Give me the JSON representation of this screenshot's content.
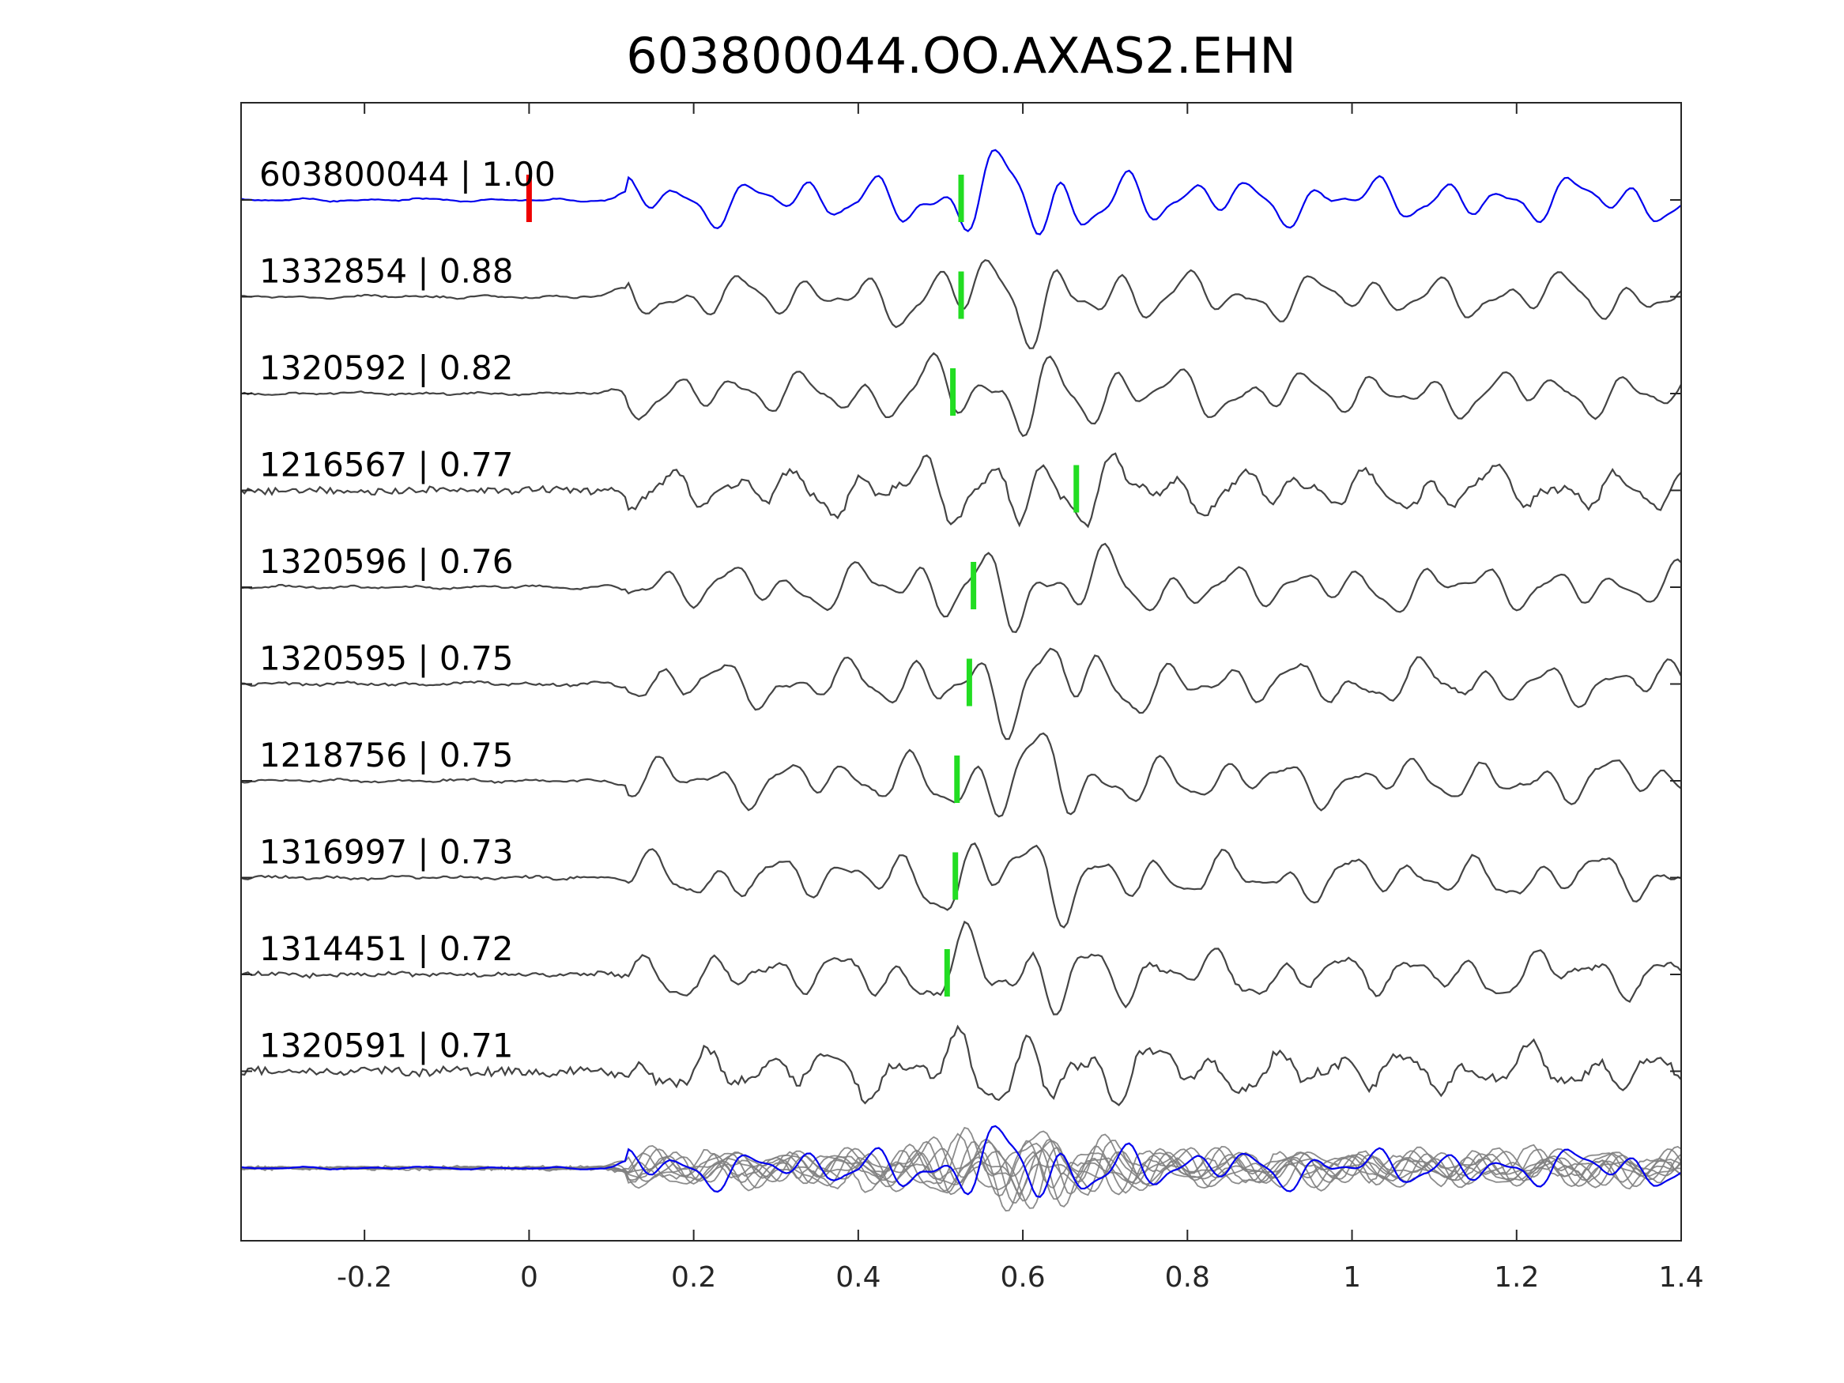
{
  "chart_data": {
    "type": "line",
    "title": "603800044.OO.AXAS2.EHN",
    "xlabel": "",
    "ylabel": "",
    "xlim": [
      -0.35,
      1.4
    ],
    "xticks": [
      -0.2,
      0,
      0.2,
      0.4,
      0.6,
      0.8,
      1,
      1.2,
      1.4
    ],
    "xtick_labels": [
      "-0.2",
      "0",
      "0.2",
      "0.4",
      "0.6",
      "0.8",
      "1",
      "1.2",
      "1.4"
    ],
    "grid": false,
    "legend": "none",
    "colors": {
      "template": "#0000ee",
      "match": "#444444",
      "overlay": "#808080",
      "origin_marker": "#ee0000",
      "pick_marker": "#22dd22",
      "axes": "#262626"
    },
    "series": [
      {
        "label": "603800044 | 1.00",
        "role": "template",
        "pick": 0.525,
        "origin": 0.0
      },
      {
        "label": "1332854 | 0.88",
        "role": "match",
        "pick": 0.525
      },
      {
        "label": "1320592 | 0.82",
        "role": "match",
        "pick": 0.515
      },
      {
        "label": "1216567 | 0.77",
        "role": "match",
        "pick": 0.665
      },
      {
        "label": "1320596 | 0.76",
        "role": "match",
        "pick": 0.54
      },
      {
        "label": "1320595 | 0.75",
        "role": "match",
        "pick": 0.535
      },
      {
        "label": "1218756 | 0.75",
        "role": "match",
        "pick": 0.52
      },
      {
        "label": "1316997 | 0.73",
        "role": "match",
        "pick": 0.518
      },
      {
        "label": "1314451 | 0.72",
        "role": "match",
        "pick": 0.508
      },
      {
        "label": "1320591 | 0.71",
        "role": "match"
      }
    ],
    "stack": {
      "role": "overlay of all traces"
    }
  }
}
